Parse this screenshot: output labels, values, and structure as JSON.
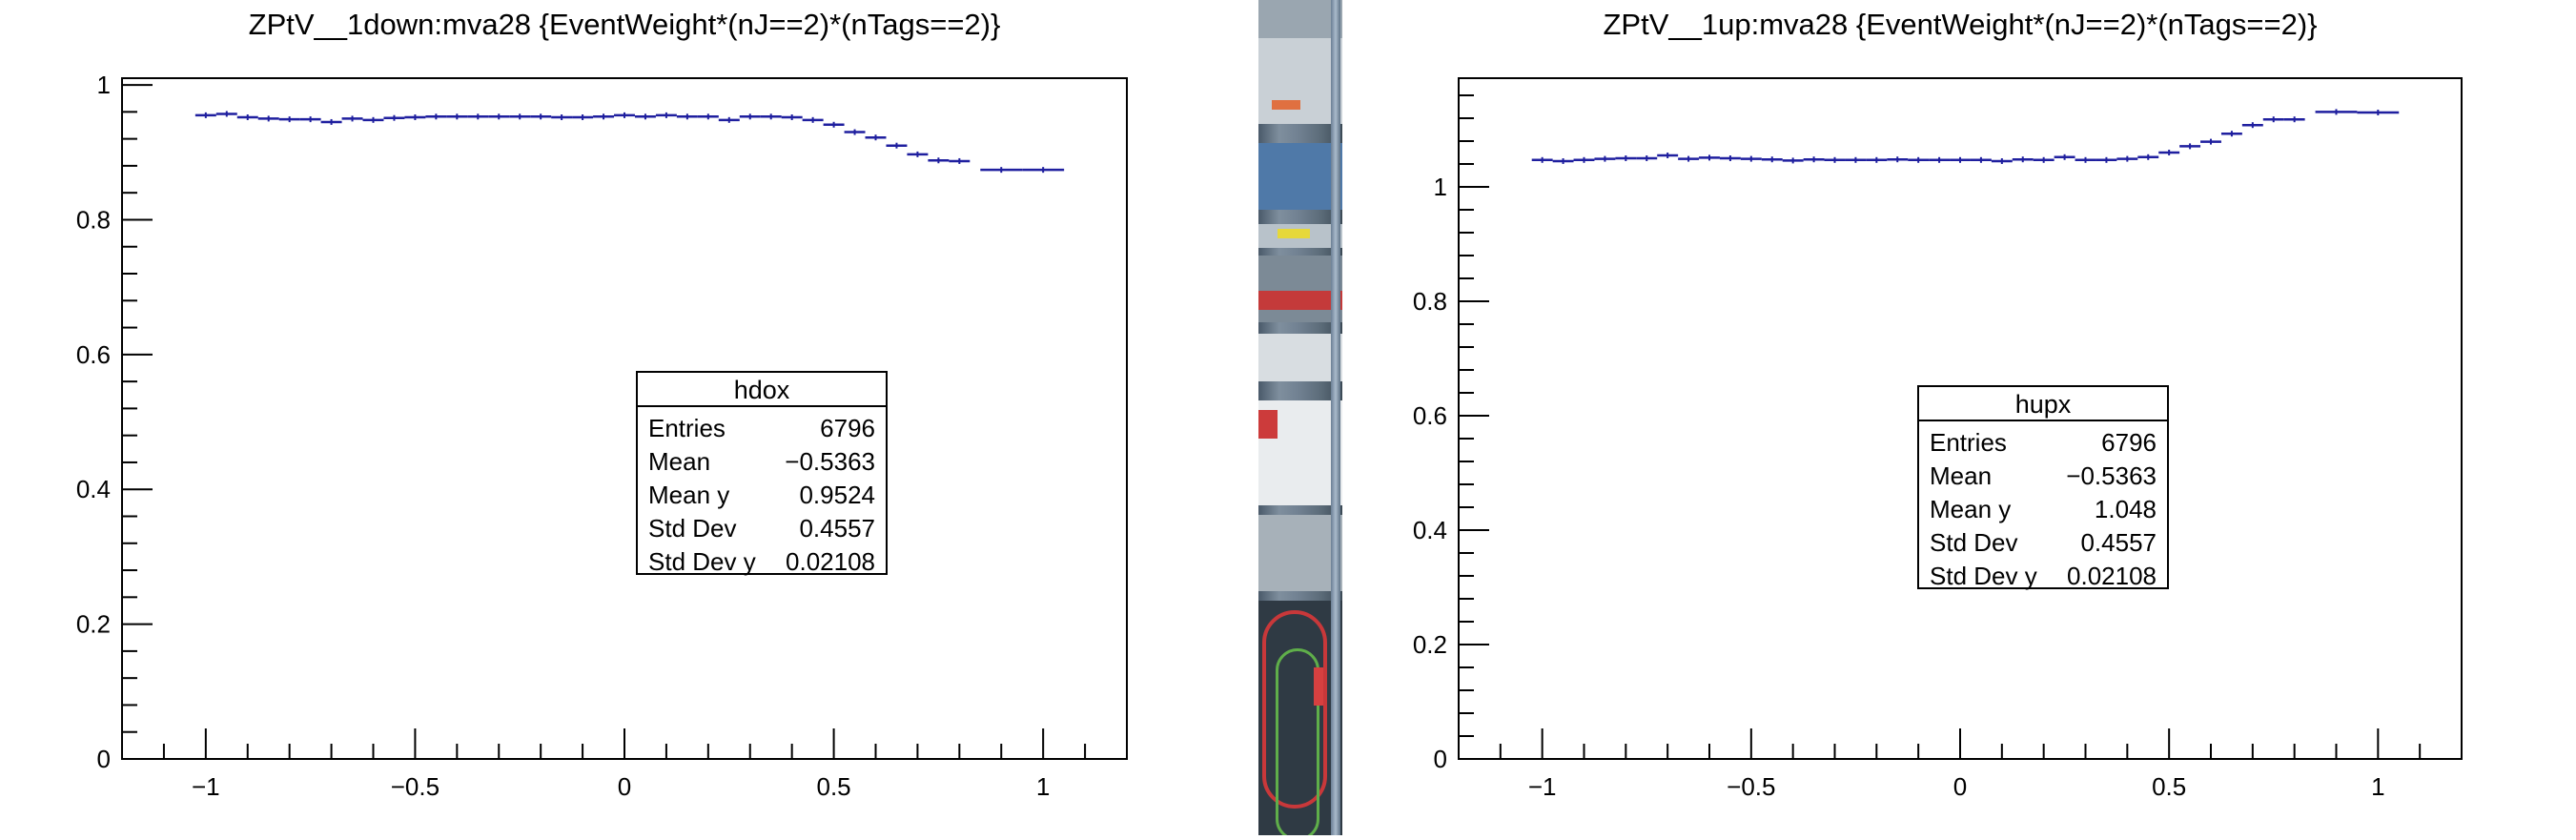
{
  "chart_data": [
    {
      "type": "line",
      "title": "ZPtV__1down:mva28 {EventWeight*(nJ==2)*(nTags==2)}",
      "xlabel": "",
      "ylabel": "",
      "xlim": [
        -1.2,
        1.2
      ],
      "ylim": [
        0,
        1.01
      ],
      "x_ticks": [
        -1,
        -0.5,
        0,
        0.5,
        1
      ],
      "x_tick_labels": [
        "−1",
        "−0.5",
        "0",
        "0.5",
        "1"
      ],
      "y_ticks": [
        0,
        0.2,
        0.4,
        0.6,
        0.8,
        1
      ],
      "y_tick_labels": [
        "0",
        "0.2",
        "0.4",
        "0.6",
        "0.8",
        "1"
      ],
      "grid": false,
      "legend": null,
      "color": "#1f1f9f",
      "series": [
        {
          "x": [
            -1.0,
            -0.95,
            -0.9,
            -0.85,
            -0.8,
            -0.75,
            -0.7,
            -0.65,
            -0.6,
            -0.55,
            -0.5,
            -0.45,
            -0.4,
            -0.35,
            -0.3,
            -0.25,
            -0.2,
            -0.15,
            -0.1,
            -0.05,
            0.0,
            0.05,
            0.1,
            0.15,
            0.2,
            0.25,
            0.3,
            0.35,
            0.4,
            0.45,
            0.5,
            0.55,
            0.6,
            0.65,
            0.7,
            0.75,
            0.8,
            0.9,
            1.0
          ],
          "xerr": [
            0.025,
            0.025,
            0.025,
            0.025,
            0.025,
            0.025,
            0.025,
            0.025,
            0.025,
            0.025,
            0.025,
            0.025,
            0.025,
            0.025,
            0.025,
            0.025,
            0.025,
            0.025,
            0.025,
            0.025,
            0.025,
            0.025,
            0.025,
            0.025,
            0.025,
            0.025,
            0.025,
            0.025,
            0.025,
            0.025,
            0.025,
            0.025,
            0.025,
            0.025,
            0.025,
            0.025,
            0.025,
            0.05,
            0.05
          ],
          "y": [
            0.955,
            0.957,
            0.952,
            0.95,
            0.949,
            0.949,
            0.945,
            0.95,
            0.948,
            0.951,
            0.952,
            0.953,
            0.953,
            0.953,
            0.953,
            0.953,
            0.953,
            0.952,
            0.952,
            0.953,
            0.955,
            0.953,
            0.955,
            0.953,
            0.953,
            0.948,
            0.953,
            0.953,
            0.952,
            0.948,
            0.941,
            0.93,
            0.922,
            0.91,
            0.897,
            0.888,
            0.887,
            0.874,
            0.874
          ]
        }
      ]
    },
    {
      "type": "line",
      "title": "ZPtV__1up:mva28 {EventWeight*(nJ==2)*(nTags==2)}",
      "xlabel": "",
      "ylabel": "",
      "xlim": [
        -1.2,
        1.2
      ],
      "ylim": [
        0,
        1.19
      ],
      "x_ticks": [
        -1,
        -0.5,
        0,
        0.5,
        1
      ],
      "x_tick_labels": [
        "−1",
        "−0.5",
        "0",
        "0.5",
        "1"
      ],
      "y_ticks": [
        0,
        0.2,
        0.4,
        0.6,
        0.8,
        1
      ],
      "y_tick_labels": [
        "0",
        "0.2",
        "0.4",
        "0.6",
        "0.8",
        "1"
      ],
      "grid": false,
      "legend": null,
      "color": "#1f1f9f",
      "series": [
        {
          "x": [
            -1.0,
            -0.95,
            -0.9,
            -0.85,
            -0.8,
            -0.75,
            -0.7,
            -0.65,
            -0.6,
            -0.55,
            -0.5,
            -0.45,
            -0.4,
            -0.35,
            -0.3,
            -0.25,
            -0.2,
            -0.15,
            -0.1,
            -0.05,
            0.0,
            0.05,
            0.1,
            0.15,
            0.2,
            0.25,
            0.3,
            0.35,
            0.4,
            0.45,
            0.5,
            0.55,
            0.6,
            0.65,
            0.7,
            0.75,
            0.8,
            0.9,
            1.0
          ],
          "xerr": [
            0.025,
            0.025,
            0.025,
            0.025,
            0.025,
            0.025,
            0.025,
            0.025,
            0.025,
            0.025,
            0.025,
            0.025,
            0.025,
            0.025,
            0.025,
            0.025,
            0.025,
            0.025,
            0.025,
            0.025,
            0.025,
            0.025,
            0.025,
            0.025,
            0.025,
            0.025,
            0.025,
            0.025,
            0.025,
            0.025,
            0.025,
            0.025,
            0.025,
            0.025,
            0.025,
            0.025,
            0.025,
            0.05,
            0.05
          ],
          "y": [
            1.047,
            1.045,
            1.047,
            1.049,
            1.05,
            1.05,
            1.055,
            1.049,
            1.051,
            1.05,
            1.049,
            1.048,
            1.046,
            1.048,
            1.047,
            1.047,
            1.047,
            1.048,
            1.047,
            1.047,
            1.047,
            1.047,
            1.045,
            1.048,
            1.047,
            1.052,
            1.047,
            1.047,
            1.049,
            1.052,
            1.06,
            1.071,
            1.079,
            1.093,
            1.108,
            1.118,
            1.118,
            1.131,
            1.13
          ]
        }
      ]
    }
  ],
  "stats": [
    {
      "name": "hdox",
      "rows": [
        {
          "label": "Entries",
          "value": "6796"
        },
        {
          "label": "Mean",
          "value": "−0.5363"
        },
        {
          "label": "Mean y",
          "value": "0.9524"
        },
        {
          "label": "Std Dev",
          "value": "0.4557"
        },
        {
          "label": "Std Dev y",
          "value": "0.02108"
        }
      ]
    },
    {
      "name": "hupx",
      "rows": [
        {
          "label": "Entries",
          "value": "6796"
        },
        {
          "label": "Mean",
          "value": "−0.5363"
        },
        {
          "label": "Mean y",
          "value": "1.048"
        },
        {
          "label": "Std Dev",
          "value": "0.4557"
        },
        {
          "label": "Std Dev y",
          "value": "0.02108"
        }
      ]
    }
  ]
}
